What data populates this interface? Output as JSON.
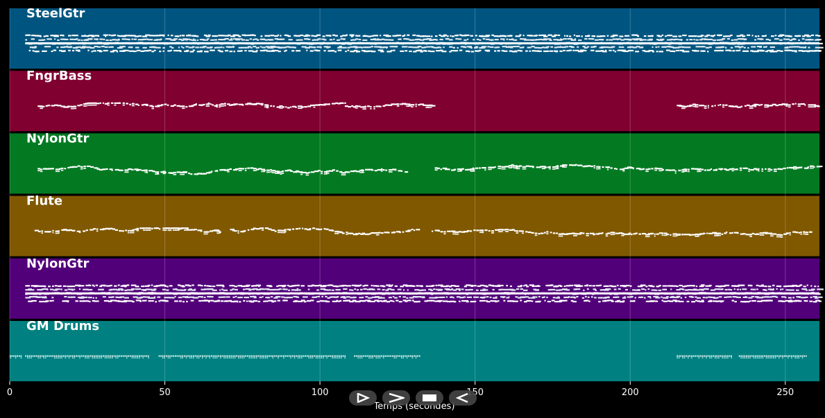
{
  "tracks": [
    {
      "name": "SteelGtr",
      "color": "#005580",
      "pattern": "dense",
      "segments": [
        [
          5,
          261
        ]
      ]
    },
    {
      "name": "FngrBass",
      "color": "#800030",
      "pattern": "line",
      "segments": [
        [
          9,
          44
        ],
        [
          45,
          108
        ],
        [
          108,
          137
        ],
        [
          215,
          261
        ]
      ]
    },
    {
      "name": "NylonGtr",
      "color": "#037a22",
      "pattern": "melody",
      "segments": [
        [
          9,
          128
        ],
        [
          137,
          261
        ]
      ]
    },
    {
      "name": "Flute",
      "color": "#805800",
      "pattern": "line",
      "segments": [
        [
          8,
          68
        ],
        [
          71,
          131
        ],
        [
          136,
          258
        ]
      ]
    },
    {
      "name": "NylonGtr",
      "color": "#52007a",
      "pattern": "dense",
      "segments": [
        [
          5,
          261
        ]
      ]
    },
    {
      "name": "GM Drums",
      "color": "#008080",
      "pattern": "drums",
      "segments": [
        [
          0,
          4
        ],
        [
          5,
          45
        ],
        [
          48,
          108
        ],
        [
          111,
          132
        ],
        [
          215,
          233
        ],
        [
          235,
          257
        ]
      ]
    }
  ],
  "xaxis": {
    "ticks": [
      "0",
      "50",
      "100",
      "150",
      "200",
      "250"
    ],
    "tick_values": [
      0,
      50,
      100,
      150,
      200,
      250
    ],
    "range": [
      0,
      261
    ],
    "label": "Temps (secondes)"
  },
  "grid": true,
  "controls": [
    {
      "name": "play-icon"
    },
    {
      "name": "forward-icon"
    },
    {
      "name": "stop-icon"
    },
    {
      "name": "rewind-icon"
    }
  ]
}
